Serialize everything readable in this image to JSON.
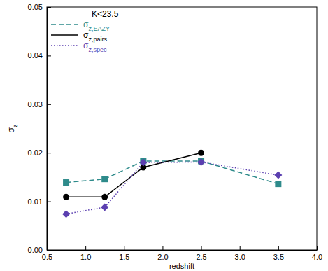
{
  "chart_data": {
    "type": "line",
    "annotation": "K<23.5",
    "x_label": "redshift",
    "y_label": "σz",
    "x": [
      0.75,
      1.25,
      1.75,
      2.5,
      3.5
    ],
    "series": [
      {
        "name": "σz,EAZY",
        "color": "#2e8b8b",
        "marker": "square",
        "line_style": "dashed",
        "values": [
          0.0139,
          0.0146,
          0.0183,
          0.0183,
          0.0136
        ]
      },
      {
        "name": "σz,pairs",
        "color": "#000000",
        "marker": "circle",
        "line_style": "solid",
        "values": [
          0.0109,
          0.0109,
          0.017,
          0.02,
          null
        ]
      },
      {
        "name": "σz,spec",
        "color": "#5b3fb0",
        "marker": "diamond",
        "line_style": "dotted",
        "values": [
          0.0074,
          0.0088,
          0.018,
          0.0181,
          0.0154
        ]
      }
    ],
    "xlim": [
      0.5,
      4.0
    ],
    "xticks": [
      {
        "value": 0.5,
        "label": "0.5"
      },
      {
        "value": 1,
        "label": "1.0"
      },
      {
        "value": 1.5,
        "label": "1.5"
      },
      {
        "value": 2,
        "label": "2.0"
      },
      {
        "value": 2.5,
        "label": "2.5"
      },
      {
        "value": 3,
        "label": "3.0"
      },
      {
        "value": 3.5,
        "label": "3.5"
      },
      {
        "value": 4,
        "label": "4.0"
      }
    ],
    "ylim": [
      0,
      0.05
    ],
    "yticks": [
      {
        "value": 0,
        "label": "0.00"
      },
      {
        "value": 0.01,
        "label": "0.01"
      },
      {
        "value": 0.02,
        "label": "0.02"
      },
      {
        "value": 0.03,
        "label": "0.03"
      },
      {
        "value": 0.04,
        "label": "0.04"
      },
      {
        "value": 0.05,
        "label": "0.05"
      }
    ],
    "legend": "top-left"
  }
}
